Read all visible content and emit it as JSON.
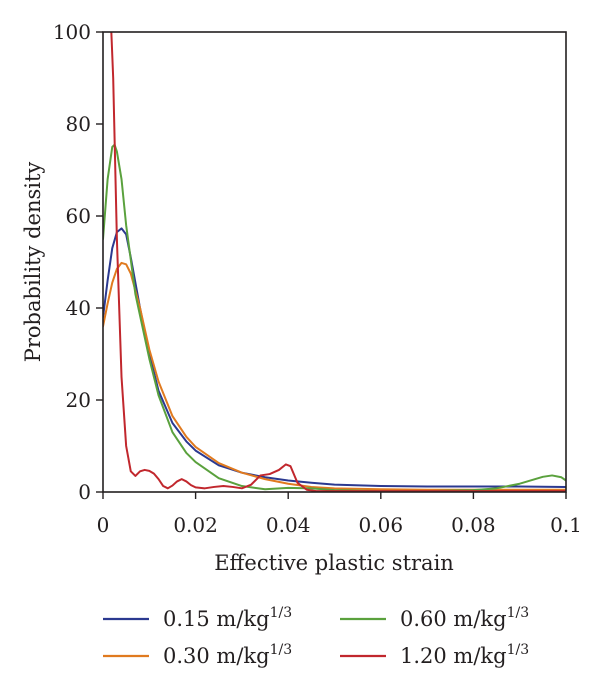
{
  "chart_data": {
    "type": "line",
    "xlabel": "Effective plastic strain",
    "ylabel": "Probability density",
    "xlim": [
      0,
      0.1
    ],
    "ylim": [
      0,
      100
    ],
    "xticks": [
      0,
      0.02,
      0.04,
      0.06,
      0.08,
      0.1
    ],
    "xtick_labels": [
      "0",
      "0.02",
      "0.04",
      "0.06",
      "0.08",
      "0.1"
    ],
    "yticks": [
      0,
      20,
      40,
      60,
      80,
      100
    ],
    "ytick_labels": [
      "0",
      "20",
      "40",
      "60",
      "80",
      "100"
    ],
    "grid": false,
    "legend_position": "bottom",
    "series": [
      {
        "name": "0.15 m/kg",
        "unit_exponent": "1/3",
        "color": "#2b3990",
        "points": [
          [
            0,
            38
          ],
          [
            0.001,
            46
          ],
          [
            0.002,
            53
          ],
          [
            0.003,
            56.5
          ],
          [
            0.004,
            57.3
          ],
          [
            0.005,
            56
          ],
          [
            0.006,
            51
          ],
          [
            0.008,
            40
          ],
          [
            0.01,
            30
          ],
          [
            0.012,
            22
          ],
          [
            0.015,
            15
          ],
          [
            0.018,
            11
          ],
          [
            0.02,
            9
          ],
          [
            0.025,
            5.8
          ],
          [
            0.03,
            4.2
          ],
          [
            0.035,
            3.2
          ],
          [
            0.04,
            2.5
          ],
          [
            0.045,
            2
          ],
          [
            0.05,
            1.6
          ],
          [
            0.06,
            1.3
          ],
          [
            0.07,
            1.2
          ],
          [
            0.08,
            1.2
          ],
          [
            0.09,
            1.2
          ],
          [
            0.1,
            1.1
          ]
        ]
      },
      {
        "name": "0.30 m/kg",
        "unit_exponent": "1/3",
        "color": "#e07a1f",
        "points": [
          [
            0,
            36
          ],
          [
            0.001,
            41
          ],
          [
            0.002,
            45.5
          ],
          [
            0.003,
            48.5
          ],
          [
            0.004,
            49.8
          ],
          [
            0.005,
            49.5
          ],
          [
            0.006,
            47.5
          ],
          [
            0.008,
            40
          ],
          [
            0.01,
            31
          ],
          [
            0.012,
            24
          ],
          [
            0.015,
            16.5
          ],
          [
            0.018,
            12
          ],
          [
            0.02,
            9.8
          ],
          [
            0.025,
            6.3
          ],
          [
            0.03,
            4.2
          ],
          [
            0.035,
            2.8
          ],
          [
            0.04,
            1.8
          ],
          [
            0.045,
            1.1
          ],
          [
            0.05,
            0.8
          ],
          [
            0.06,
            0.6
          ],
          [
            0.07,
            0.5
          ],
          [
            0.08,
            0.5
          ],
          [
            0.09,
            0.5
          ],
          [
            0.1,
            0.5
          ]
        ]
      },
      {
        "name": "0.60 m/kg",
        "unit_exponent": "1/3",
        "color": "#5aa13d",
        "points": [
          [
            0,
            55
          ],
          [
            0.001,
            68
          ],
          [
            0.002,
            75
          ],
          [
            0.0025,
            75.5
          ],
          [
            0.003,
            74
          ],
          [
            0.004,
            68
          ],
          [
            0.005,
            58
          ],
          [
            0.007,
            43
          ],
          [
            0.01,
            29
          ],
          [
            0.012,
            21
          ],
          [
            0.015,
            13
          ],
          [
            0.018,
            8.5
          ],
          [
            0.02,
            6.5
          ],
          [
            0.025,
            3
          ],
          [
            0.03,
            1.3
          ],
          [
            0.035,
            0.6
          ],
          [
            0.04,
            0.9
          ],
          [
            0.045,
            0.8
          ],
          [
            0.05,
            0.4
          ],
          [
            0.06,
            0.2
          ],
          [
            0.07,
            0.2
          ],
          [
            0.08,
            0.4
          ],
          [
            0.085,
            0.8
          ],
          [
            0.09,
            1.8
          ],
          [
            0.095,
            3.3
          ],
          [
            0.097,
            3.6
          ],
          [
            0.099,
            3.2
          ],
          [
            0.1,
            2.5
          ]
        ]
      },
      {
        "name": "1.20 m/kg",
        "unit_exponent": "1/3",
        "color": "#c1272d",
        "points": [
          [
            0.0018,
            100
          ],
          [
            0.0022,
            90
          ],
          [
            0.003,
            55
          ],
          [
            0.004,
            25
          ],
          [
            0.005,
            10
          ],
          [
            0.006,
            4.5
          ],
          [
            0.007,
            3.5
          ],
          [
            0.008,
            4.5
          ],
          [
            0.009,
            4.8
          ],
          [
            0.01,
            4.6
          ],
          [
            0.011,
            4
          ],
          [
            0.012,
            2.8
          ],
          [
            0.013,
            1.3
          ],
          [
            0.014,
            0.8
          ],
          [
            0.015,
            1.4
          ],
          [
            0.016,
            2.3
          ],
          [
            0.017,
            2.8
          ],
          [
            0.018,
            2.3
          ],
          [
            0.019,
            1.5
          ],
          [
            0.02,
            1
          ],
          [
            0.022,
            0.8
          ],
          [
            0.024,
            1.1
          ],
          [
            0.026,
            1.3
          ],
          [
            0.028,
            1.1
          ],
          [
            0.03,
            0.8
          ],
          [
            0.032,
            1.6
          ],
          [
            0.034,
            3.6
          ],
          [
            0.036,
            3.9
          ],
          [
            0.038,
            4.8
          ],
          [
            0.0395,
            6
          ],
          [
            0.0405,
            5.6
          ],
          [
            0.042,
            2
          ],
          [
            0.044,
            0.5
          ],
          [
            0.046,
            0.2
          ],
          [
            0.05,
            0.2
          ],
          [
            0.06,
            0.2
          ],
          [
            0.07,
            0.2
          ],
          [
            0.08,
            0.2
          ],
          [
            0.09,
            0.2
          ],
          [
            0.1,
            0.2
          ]
        ]
      }
    ]
  }
}
